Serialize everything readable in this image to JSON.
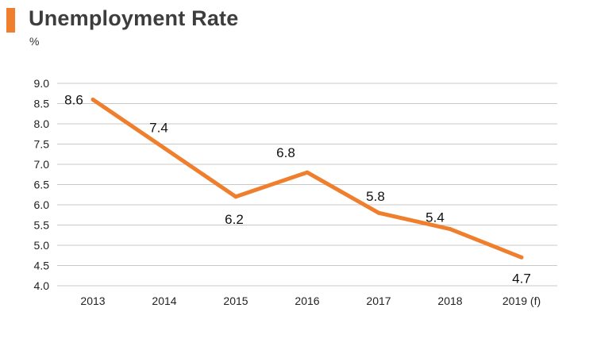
{
  "header": {
    "title": "Unemployment Rate",
    "unit": "%"
  },
  "colors": {
    "accent": "#ef7f2d",
    "line": "#ef7f2d",
    "grid": "#c8c8c8",
    "text": "#222222"
  },
  "chart_data": {
    "type": "line",
    "title": "Unemployment Rate",
    "xlabel": "",
    "ylabel": "%",
    "categories": [
      "2013",
      "2014",
      "2015",
      "2016",
      "2017",
      "2018",
      "2019 (f)"
    ],
    "series": [
      {
        "values": [
          8.6,
          7.4,
          6.2,
          6.8,
          5.8,
          5.4,
          4.7
        ],
        "data_labels": [
          "8.6",
          "7.4",
          "6.2",
          "6.8",
          "5.8",
          "5.4",
          "4.7"
        ]
      }
    ],
    "ylim": [
      4.0,
      9.0
    ],
    "y_ticks": [
      "4.0",
      "4.5",
      "5.0",
      "5.5",
      "6.0",
      "6.5",
      "7.0",
      "7.5",
      "8.0",
      "8.5",
      "9.0"
    ],
    "grid": true,
    "legend": "none"
  }
}
